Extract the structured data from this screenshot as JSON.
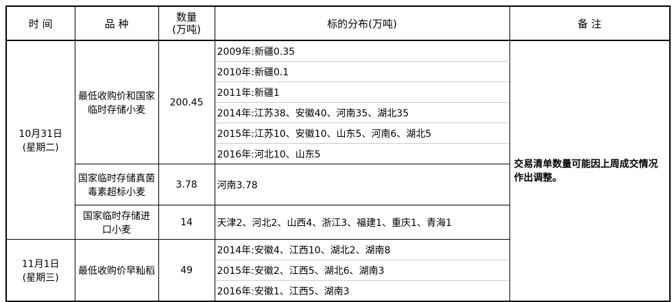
{
  "headers": {
    "time": "时 间",
    "variety": "品 种",
    "qty_1": "数量",
    "qty_2": "(万吨)",
    "dist": "标的分布(万吨)",
    "note": "备 注"
  },
  "groups": [
    {
      "date_1": "10月31日",
      "date_2": "(星期二)",
      "items": [
        {
          "variety": "最低收购价和国家临时存储小麦",
          "qty": "200.45",
          "dist": [
            "2009年:新疆0.35",
            "2010年:新疆0.1",
            "2011年:新疆1",
            "2014年:江苏38、安徽40、河南35、湖北35",
            "2015年:江苏10、安徽10、山东5、河南6、湖北5",
            "2016年:河北10、山东5"
          ]
        },
        {
          "variety": "国家临时存储真菌毒素超标小麦",
          "qty": "3.78",
          "dist": [
            "河南3.78"
          ]
        },
        {
          "variety": "国家临时存储进口小麦",
          "qty": "14",
          "dist": [
            "天津2、河北2、山西4、浙江3、福建1、重庆1、青海1"
          ]
        }
      ]
    },
    {
      "date_1": "11月1日",
      "date_2": "(星期三)",
      "items": [
        {
          "variety": "最低收购价早籼稻",
          "qty": "49",
          "dist": [
            "2014年:安徽4、江西10、湖北2、湖南8",
            "2015年:安徽2、江西5、湖北6、湖南3",
            "2016年:安徽1、江西5、湖南3"
          ]
        }
      ]
    }
  ],
  "note": "交易清单数量可能因上周成交情况作出调整。"
}
